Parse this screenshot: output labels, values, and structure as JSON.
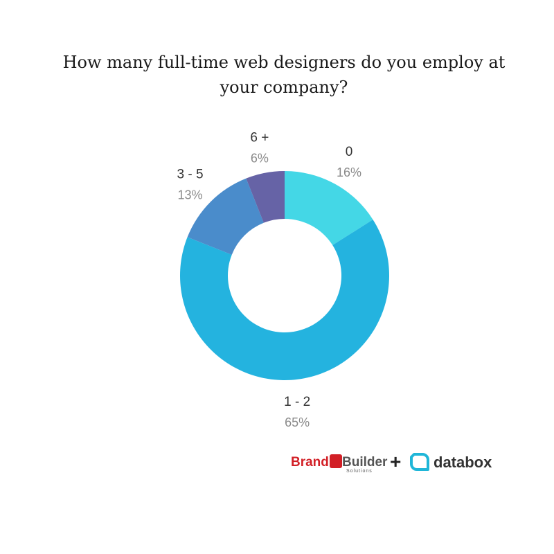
{
  "chart_data": {
    "type": "pie",
    "title": "How many full-time web designers do you employ at your company?",
    "categories": [
      "0",
      "1 - 2",
      "3 - 5",
      "6 +"
    ],
    "values": [
      16,
      65,
      13,
      6
    ],
    "value_labels": [
      "16%",
      "65%",
      "13%",
      "6%"
    ],
    "colors": [
      "#44d7e6",
      "#24b3df",
      "#4a8ccb",
      "#6663a6"
    ],
    "donut": true
  },
  "branding": {
    "logo1_part1": "Brand",
    "logo1_part2": "Builder",
    "logo1_sub": "Solutions",
    "plus": "+",
    "logo2": "databox"
  }
}
